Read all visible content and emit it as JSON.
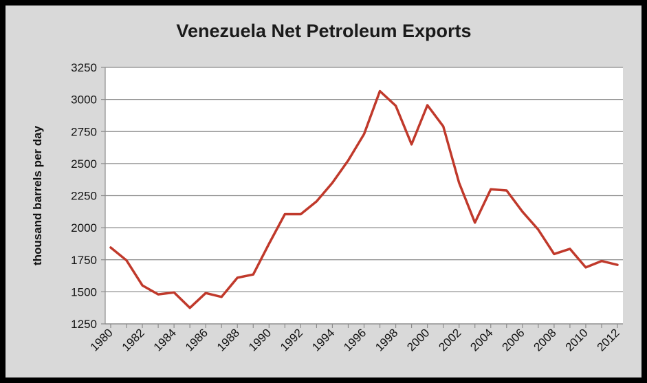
{
  "chart_data": {
    "type": "line",
    "title": "Venezuela Net Petroleum Exports",
    "xlabel": "",
    "ylabel": "thousand barrels per day",
    "ylim": [
      1250,
      3250
    ],
    "yticks": [
      1250,
      1500,
      1750,
      2000,
      2250,
      2500,
      2750,
      3000,
      3250
    ],
    "xlim": [
      1980,
      2012
    ],
    "xticks": [
      1980,
      1982,
      1984,
      1986,
      1988,
      1990,
      1992,
      1994,
      1996,
      1998,
      2000,
      2002,
      2004,
      2006,
      2008,
      2010,
      2012
    ],
    "grid": true,
    "legend": "none",
    "line_color": "#c0392b",
    "series": [
      {
        "x": [
          1980,
          1981,
          1982,
          1983,
          1984,
          1985,
          1986,
          1987,
          1988,
          1989,
          1990,
          1991,
          1992,
          1993,
          1994,
          1995,
          1996,
          1997,
          1998,
          1999,
          2000,
          2001,
          2002,
          2003,
          2004,
          2005,
          2006,
          2007,
          2008,
          2009,
          2010,
          2011,
          2012
        ],
        "values": [
          1845,
          1745,
          1550,
          1480,
          1495,
          1375,
          1490,
          1460,
          1610,
          1635,
          1875,
          2105,
          2105,
          2205,
          2350,
          2525,
          2730,
          3065,
          2950,
          2650,
          2955,
          2790,
          2350,
          2040,
          2300,
          2290,
          2125,
          1985,
          1795,
          1835,
          1690,
          1740,
          1710
        ]
      }
    ]
  }
}
